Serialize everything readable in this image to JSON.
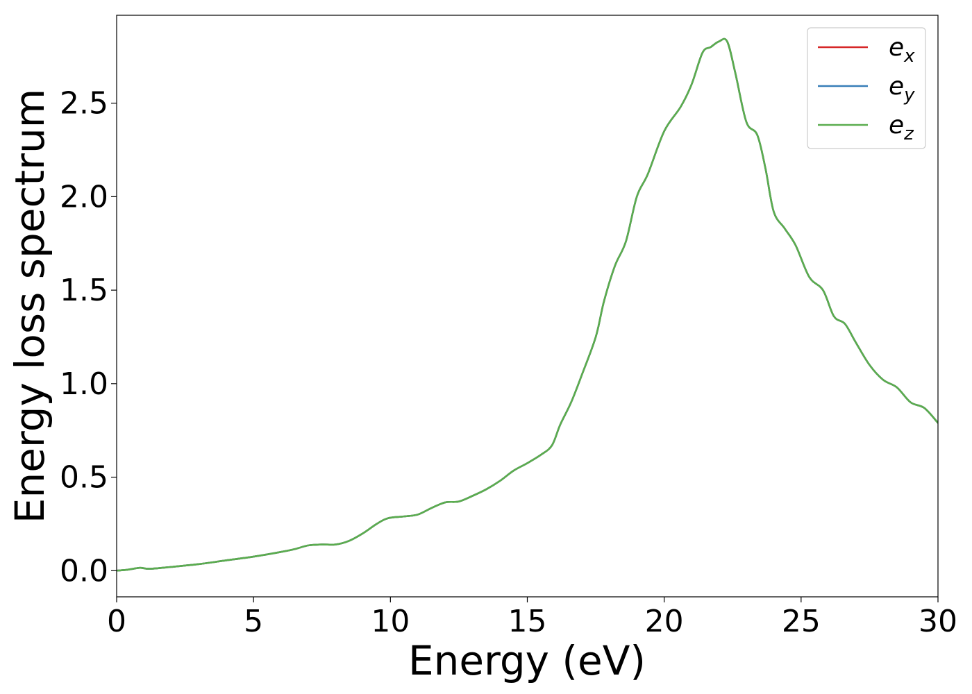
{
  "chart_data": {
    "type": "line",
    "title": "",
    "xlabel": "Energy (eV)",
    "ylabel": "Energy loss spectrum",
    "xlim": [
      0,
      30
    ],
    "ylim": [
      -0.14,
      2.97
    ],
    "xticks": [
      0,
      5,
      10,
      15,
      20,
      25,
      30
    ],
    "xtick_labels": [
      "0",
      "5",
      "10",
      "15",
      "20",
      "25",
      "30"
    ],
    "yticks": [
      0.0,
      0.5,
      1.0,
      1.5,
      2.0,
      2.5
    ],
    "ytick_labels": [
      "0.0",
      "0.5",
      "1.0",
      "1.5",
      "2.0",
      "2.5"
    ],
    "grid": false,
    "legend_position": "top-right",
    "x": [
      0,
      0.4,
      0.85,
      1.2,
      2,
      3,
      4,
      5,
      6,
      6.5,
      7,
      7.5,
      8,
      8.5,
      9,
      9.5,
      9.9,
      10.5,
      11,
      11.5,
      12,
      12.5,
      13,
      13.5,
      14,
      14.5,
      15,
      15.5,
      15.9,
      16.2,
      16.6,
      17,
      17.5,
      17.8,
      18.2,
      18.6,
      19,
      19.4,
      20,
      20.6,
      21,
      21.4,
      21.7,
      22,
      22.3,
      22.6,
      23,
      23.4,
      23.7,
      24,
      24.4,
      24.8,
      25.3,
      25.8,
      26.2,
      26.6,
      27,
      27.5,
      28,
      28.5,
      29,
      29.5,
      30
    ],
    "series": [
      {
        "name": "e_x",
        "label_main": "e",
        "label_sub": "x",
        "color": "#d62728",
        "values": [
          0.0,
          0.005,
          0.015,
          0.01,
          0.02,
          0.035,
          0.055,
          0.075,
          0.1,
          0.115,
          0.135,
          0.14,
          0.14,
          0.16,
          0.2,
          0.25,
          0.28,
          0.29,
          0.3,
          0.335,
          0.365,
          0.37,
          0.4,
          0.435,
          0.48,
          0.535,
          0.575,
          0.62,
          0.67,
          0.78,
          0.9,
          1.05,
          1.25,
          1.44,
          1.63,
          1.76,
          2.0,
          2.12,
          2.35,
          2.48,
          2.6,
          2.77,
          2.8,
          2.83,
          2.83,
          2.66,
          2.4,
          2.33,
          2.15,
          1.92,
          1.83,
          1.74,
          1.57,
          1.5,
          1.36,
          1.32,
          1.22,
          1.1,
          1.02,
          0.98,
          0.9,
          0.87,
          0.79
        ]
      },
      {
        "name": "e_y",
        "label_main": "e",
        "label_sub": "y",
        "color": "#377eb8",
        "values": [
          0.0,
          0.005,
          0.015,
          0.01,
          0.02,
          0.035,
          0.055,
          0.075,
          0.1,
          0.115,
          0.135,
          0.14,
          0.14,
          0.16,
          0.2,
          0.25,
          0.28,
          0.29,
          0.3,
          0.335,
          0.365,
          0.37,
          0.4,
          0.435,
          0.48,
          0.535,
          0.575,
          0.62,
          0.67,
          0.78,
          0.9,
          1.05,
          1.25,
          1.44,
          1.63,
          1.76,
          2.0,
          2.12,
          2.35,
          2.48,
          2.6,
          2.77,
          2.8,
          2.83,
          2.83,
          2.66,
          2.4,
          2.33,
          2.15,
          1.92,
          1.83,
          1.74,
          1.57,
          1.5,
          1.36,
          1.32,
          1.22,
          1.1,
          1.02,
          0.98,
          0.9,
          0.87,
          0.79
        ]
      },
      {
        "name": "e_z",
        "label_main": "e",
        "label_sub": "z",
        "color": "#5aad4e",
        "values": [
          0.0,
          0.005,
          0.015,
          0.01,
          0.02,
          0.035,
          0.055,
          0.075,
          0.1,
          0.115,
          0.135,
          0.14,
          0.14,
          0.16,
          0.2,
          0.25,
          0.28,
          0.29,
          0.3,
          0.335,
          0.365,
          0.37,
          0.4,
          0.435,
          0.48,
          0.535,
          0.575,
          0.62,
          0.67,
          0.78,
          0.9,
          1.05,
          1.25,
          1.44,
          1.63,
          1.76,
          2.0,
          2.12,
          2.35,
          2.48,
          2.6,
          2.77,
          2.8,
          2.83,
          2.83,
          2.66,
          2.4,
          2.33,
          2.15,
          1.92,
          1.83,
          1.74,
          1.57,
          1.5,
          1.36,
          1.32,
          1.22,
          1.1,
          1.02,
          0.98,
          0.9,
          0.87,
          0.79
        ]
      }
    ]
  }
}
